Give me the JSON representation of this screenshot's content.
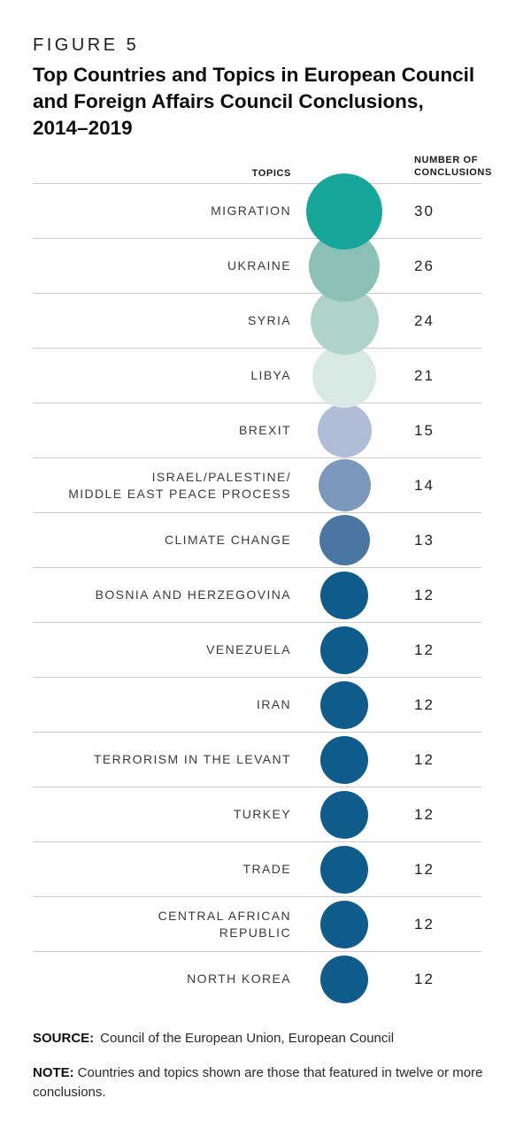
{
  "figure": {
    "label": "FIGURE 5",
    "title_lines": [
      "Top Countries and Topics in European Council",
      "and Foreign Affairs Council Conclusions,",
      "2014–2019"
    ]
  },
  "table": {
    "header": {
      "topics": "TOPICS",
      "value": "NUMBER OF CONCLUSIONS"
    },
    "rows": [
      {
        "topic_lines": [
          "MIGRATION"
        ],
        "value": 30,
        "color": "#17A79A"
      },
      {
        "topic_lines": [
          "UKRAINE"
        ],
        "value": 26,
        "color": "#8BC0B7"
      },
      {
        "topic_lines": [
          "SYRIA"
        ],
        "value": 24,
        "color": "#AFD3CB"
      },
      {
        "topic_lines": [
          "LIBYA"
        ],
        "value": 21,
        "color": "#D8E8E4"
      },
      {
        "topic_lines": [
          "BREXIT"
        ],
        "value": 15,
        "color": "#AFBDD7"
      },
      {
        "topic_lines": [
          "ISRAEL/PALESTINE/",
          "MIDDLE EAST PEACE PROCESS"
        ],
        "value": 14,
        "color": "#7B97BC"
      },
      {
        "topic_lines": [
          "CLIMATE CHANGE"
        ],
        "value": 13,
        "color": "#4A76A2"
      },
      {
        "topic_lines": [
          "BOSNIA AND HERZEGOVINA"
        ],
        "value": 12,
        "color": "#0E5C8C"
      },
      {
        "topic_lines": [
          "VENEZUELA"
        ],
        "value": 12,
        "color": "#0E5C8C"
      },
      {
        "topic_lines": [
          "IRAN"
        ],
        "value": 12,
        "color": "#0E5C8C"
      },
      {
        "topic_lines": [
          "TERRORISM IN THE LEVANT"
        ],
        "value": 12,
        "color": "#0E5C8C"
      },
      {
        "topic_lines": [
          "TURKEY"
        ],
        "value": 12,
        "color": "#0E5C8C"
      },
      {
        "topic_lines": [
          "TRADE"
        ],
        "value": 12,
        "color": "#0E5C8C"
      },
      {
        "topic_lines": [
          "CENTRAL AFRICAN",
          "REPUBLIC"
        ],
        "value": 12,
        "color": "#0E5C8C"
      },
      {
        "topic_lines": [
          "NORTH KOREA"
        ],
        "value": 12,
        "color": "#0E5C8C"
      }
    ]
  },
  "source": {
    "label": "SOURCE:",
    "text": "Council of the European Union, European Council"
  },
  "note": {
    "label": "NOTE:",
    "text": "Countries and topics shown are those that featured in twelve or more conclusions."
  },
  "chart_data": {
    "type": "table",
    "mark": "proportional-circle",
    "title": "Top Countries and Topics in European Council and Foreign Affairs Council Conclusions, 2014–2019",
    "columns": [
      "Topics",
      "Number of Conclusions"
    ],
    "categories": [
      "Migration",
      "Ukraine",
      "Syria",
      "Libya",
      "Brexit",
      "Israel/Palestine/Middle East Peace Process",
      "Climate Change",
      "Bosnia and Herzegovina",
      "Venezuela",
      "Iran",
      "Terrorism in the Levant",
      "Turkey",
      "Trade",
      "Central African Republic",
      "North Korea"
    ],
    "values": [
      30,
      26,
      24,
      21,
      15,
      14,
      13,
      12,
      12,
      12,
      12,
      12,
      12,
      12,
      12
    ],
    "bubble_colors": [
      "#17A79A",
      "#8BC0B7",
      "#AFD3CB",
      "#D8E8E4",
      "#AFBDD7",
      "#7B97BC",
      "#4A76A2",
      "#0E5C8C",
      "#0E5C8C",
      "#0E5C8C",
      "#0E5C8C",
      "#0E5C8C",
      "#0E5C8C",
      "#0E5C8C",
      "#0E5C8C"
    ],
    "value_range": [
      12,
      30
    ],
    "legend_position": "none",
    "grid": "horizontal-row-dividers"
  }
}
